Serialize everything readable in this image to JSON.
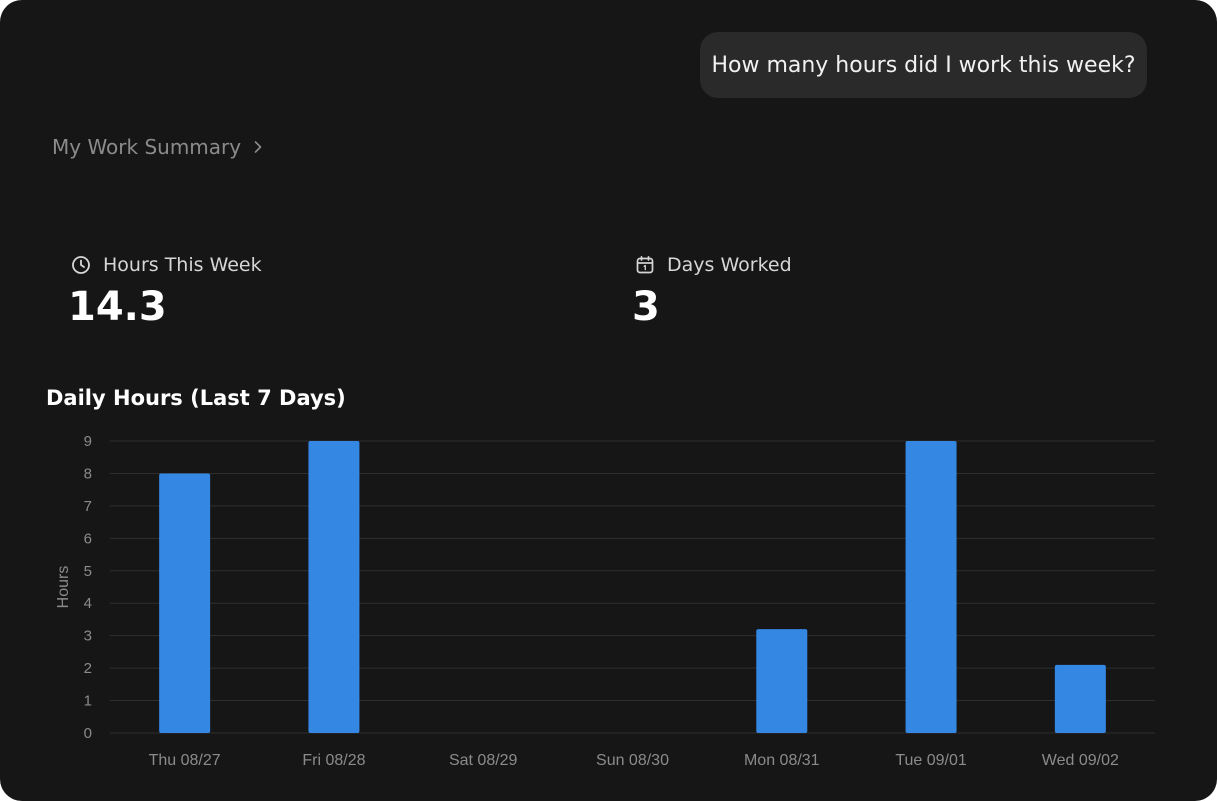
{
  "user_message": "How many hours did I work this week?",
  "breadcrumb": {
    "label": "My Work Summary",
    "chevron_icon": "chevron-right-icon"
  },
  "stats": {
    "hours": {
      "icon": "clock-icon",
      "label": "Hours This Week",
      "value": "14.3"
    },
    "days": {
      "icon": "calendar-icon",
      "label": "Days Worked",
      "value": "3"
    }
  },
  "colors": {
    "background": "#161616",
    "bubble": "#2a2a2a",
    "bar": "#3487e3",
    "grid": "#2f2f2f",
    "muted_text": "#8b8b8b"
  },
  "chart_data": {
    "type": "bar",
    "title": "Daily Hours (Last 7 Days)",
    "xlabel": "",
    "ylabel": "Hours",
    "ylim": [
      0,
      9
    ],
    "yticks": [
      0,
      1,
      2,
      3,
      4,
      5,
      6,
      7,
      8,
      9
    ],
    "categories": [
      "Thu 08/27",
      "Fri 08/28",
      "Sat 08/29",
      "Sun 08/30",
      "Mon 08/31",
      "Tue 09/01",
      "Wed 09/02"
    ],
    "values": [
      8.0,
      9.0,
      0,
      0,
      3.2,
      9.0,
      2.1
    ],
    "grid": true,
    "legend": "none"
  }
}
